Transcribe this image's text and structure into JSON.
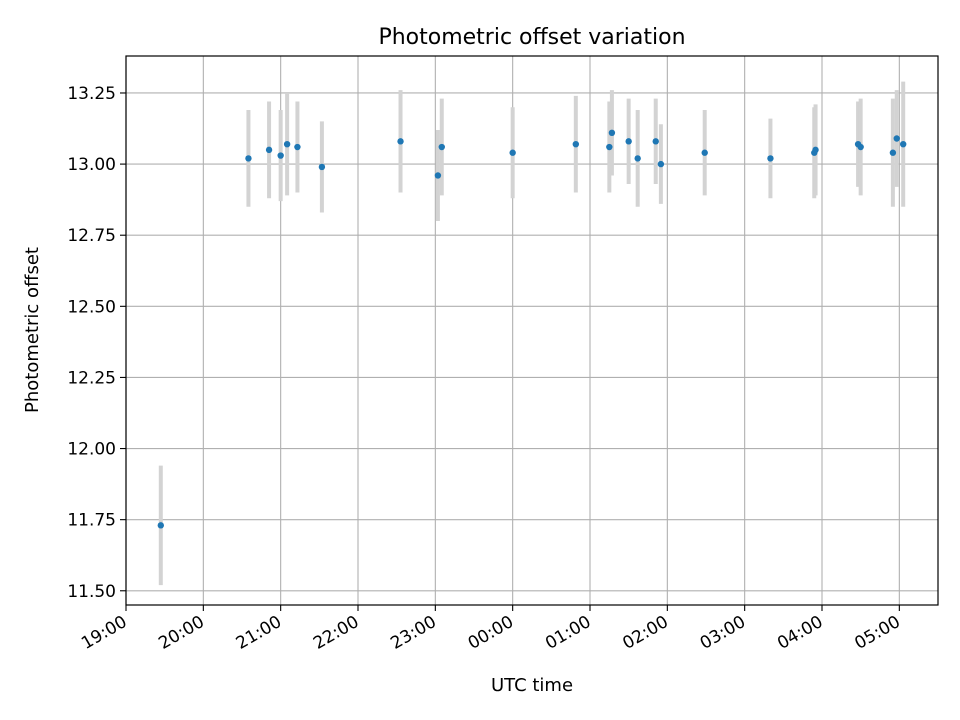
{
  "chart_data": {
    "type": "scatter",
    "title": "Photometric offset variation",
    "xlabel": "UTC time",
    "ylabel": "Photometric offset",
    "x_unit": "UTC clock time (hours after 19:00 on the evening date, wraps past midnight)",
    "xlim": [
      "19:00",
      "05:30"
    ],
    "ylim": [
      11.45,
      13.38
    ],
    "grid": true,
    "x_ticks": [
      "19:00",
      "20:00",
      "21:00",
      "22:00",
      "23:00",
      "00:00",
      "01:00",
      "02:00",
      "03:00",
      "04:00",
      "05:00"
    ],
    "y_ticks": [
      "11.50",
      "11.75",
      "12.00",
      "12.25",
      "12.50",
      "12.75",
      "13.00",
      "13.25"
    ],
    "colors": {
      "points": "#1f77b4",
      "error_bars": "#d3d3d3",
      "grid": "#b0b0b0"
    },
    "series": [
      {
        "points": [
          {
            "time": "19:27",
            "y": 11.73,
            "err": 0.21
          },
          {
            "time": "20:35",
            "y": 13.02,
            "err": 0.17
          },
          {
            "time": "20:51",
            "y": 13.05,
            "err": 0.17
          },
          {
            "time": "21:00",
            "y": 13.03,
            "err": 0.16
          },
          {
            "time": "21:05",
            "y": 13.07,
            "err": 0.18
          },
          {
            "time": "21:13",
            "y": 13.06,
            "err": 0.16
          },
          {
            "time": "21:32",
            "y": 12.99,
            "err": 0.16
          },
          {
            "time": "22:33",
            "y": 13.08,
            "err": 0.18
          },
          {
            "time": "23:02",
            "y": 12.96,
            "err": 0.16
          },
          {
            "time": "23:05",
            "y": 13.06,
            "err": 0.17
          },
          {
            "time": "00:00",
            "y": 13.04,
            "err": 0.16
          },
          {
            "time": "00:49",
            "y": 13.07,
            "err": 0.17
          },
          {
            "time": "01:15",
            "y": 13.06,
            "err": 0.16
          },
          {
            "time": "01:17",
            "y": 13.11,
            "err": 0.15
          },
          {
            "time": "01:30",
            "y": 13.08,
            "err": 0.15
          },
          {
            "time": "01:37",
            "y": 13.02,
            "err": 0.17
          },
          {
            "time": "01:51",
            "y": 13.08,
            "err": 0.15
          },
          {
            "time": "01:55",
            "y": 13.0,
            "err": 0.14
          },
          {
            "time": "02:29",
            "y": 13.04,
            "err": 0.15
          },
          {
            "time": "03:20",
            "y": 13.02,
            "err": 0.14
          },
          {
            "time": "03:54",
            "y": 13.04,
            "err": 0.16
          },
          {
            "time": "03:55",
            "y": 13.05,
            "err": 0.16
          },
          {
            "time": "04:28",
            "y": 13.07,
            "err": 0.15
          },
          {
            "time": "04:30",
            "y": 13.06,
            "err": 0.17
          },
          {
            "time": "04:55",
            "y": 13.04,
            "err": 0.19
          },
          {
            "time": "04:58",
            "y": 13.09,
            "err": 0.17
          },
          {
            "time": "05:03",
            "y": 13.07,
            "err": 0.22
          }
        ]
      }
    ]
  }
}
